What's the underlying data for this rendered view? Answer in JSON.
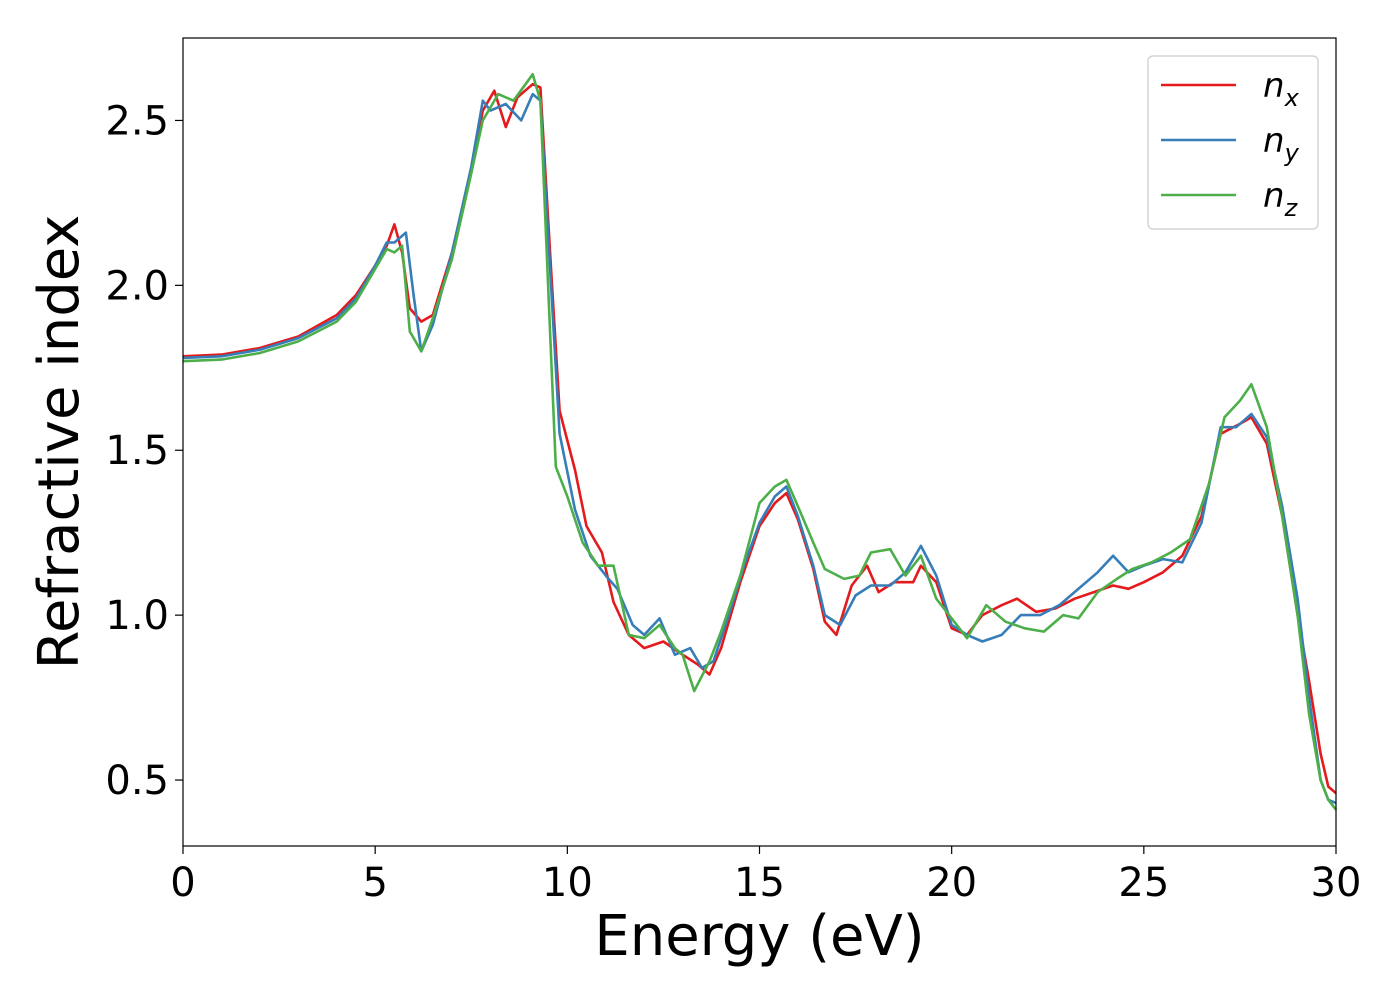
{
  "chart_data": {
    "type": "line",
    "xlabel": "Energy (eV)",
    "ylabel": "Refractive index",
    "xlim": [
      0,
      30
    ],
    "ylim": [
      0.3,
      2.75
    ],
    "x_ticks": [
      0,
      5,
      10,
      15,
      20,
      25,
      30
    ],
    "x_tick_labels": [
      "0",
      "5",
      "10",
      "15",
      "20",
      "25",
      "30"
    ],
    "y_ticks": [
      0.5,
      1.0,
      1.5,
      2.0,
      2.5
    ],
    "y_tick_labels": [
      "0.5",
      "1.0",
      "1.5",
      "2.0",
      "2.5"
    ],
    "grid": false,
    "legend_position": "top-right",
    "series": [
      {
        "name": "n",
        "subscript": "x",
        "color": "#e41a1c",
        "points": [
          [
            0,
            1.785
          ],
          [
            1,
            1.79
          ],
          [
            2,
            1.81
          ],
          [
            3,
            1.845
          ],
          [
            4,
            1.91
          ],
          [
            4.5,
            1.97
          ],
          [
            5,
            2.06
          ],
          [
            5.3,
            2.12
          ],
          [
            5.5,
            2.185
          ],
          [
            5.7,
            2.1
          ],
          [
            5.9,
            1.93
          ],
          [
            6.2,
            1.89
          ],
          [
            6.5,
            1.91
          ],
          [
            7,
            2.1
          ],
          [
            7.5,
            2.35
          ],
          [
            7.8,
            2.53
          ],
          [
            8.1,
            2.59
          ],
          [
            8.4,
            2.48
          ],
          [
            8.7,
            2.57
          ],
          [
            9.1,
            2.61
          ],
          [
            9.3,
            2.6
          ],
          [
            9.6,
            2.0
          ],
          [
            9.8,
            1.62
          ],
          [
            10.2,
            1.44
          ],
          [
            10.5,
            1.27
          ],
          [
            10.9,
            1.19
          ],
          [
            11.2,
            1.04
          ],
          [
            11.6,
            0.94
          ],
          [
            12.0,
            0.9
          ],
          [
            12.5,
            0.92
          ],
          [
            13.0,
            0.88
          ],
          [
            13.4,
            0.85
          ],
          [
            13.7,
            0.82
          ],
          [
            14.0,
            0.9
          ],
          [
            14.5,
            1.1
          ],
          [
            15.0,
            1.27
          ],
          [
            15.4,
            1.34
          ],
          [
            15.7,
            1.37
          ],
          [
            16.0,
            1.29
          ],
          [
            16.4,
            1.14
          ],
          [
            16.7,
            0.98
          ],
          [
            17.0,
            0.94
          ],
          [
            17.4,
            1.09
          ],
          [
            17.8,
            1.15
          ],
          [
            18.1,
            1.07
          ],
          [
            18.5,
            1.1
          ],
          [
            19.0,
            1.1
          ],
          [
            19.2,
            1.15
          ],
          [
            19.6,
            1.1
          ],
          [
            20.0,
            0.96
          ],
          [
            20.4,
            0.94
          ],
          [
            20.8,
            1.0
          ],
          [
            21.3,
            1.03
          ],
          [
            21.7,
            1.05
          ],
          [
            22.2,
            1.01
          ],
          [
            22.7,
            1.02
          ],
          [
            23.2,
            1.05
          ],
          [
            23.7,
            1.07
          ],
          [
            24.2,
            1.09
          ],
          [
            24.6,
            1.08
          ],
          [
            25.0,
            1.1
          ],
          [
            25.5,
            1.13
          ],
          [
            26.0,
            1.18
          ],
          [
            26.5,
            1.3
          ],
          [
            27.0,
            1.55
          ],
          [
            27.5,
            1.58
          ],
          [
            27.8,
            1.6
          ],
          [
            28.2,
            1.52
          ],
          [
            28.6,
            1.3
          ],
          [
            29.0,
            1.0
          ],
          [
            29.3,
            0.8
          ],
          [
            29.6,
            0.58
          ],
          [
            29.8,
            0.48
          ],
          [
            30.0,
            0.46
          ]
        ]
      },
      {
        "name": "n",
        "subscript": "y",
        "color": "#377eb8",
        "points": [
          [
            0,
            1.78
          ],
          [
            1,
            1.785
          ],
          [
            2,
            1.805
          ],
          [
            3,
            1.84
          ],
          [
            4,
            1.9
          ],
          [
            4.5,
            1.96
          ],
          [
            5,
            2.06
          ],
          [
            5.3,
            2.13
          ],
          [
            5.5,
            2.13
          ],
          [
            5.8,
            2.16
          ],
          [
            6.0,
            1.97
          ],
          [
            6.2,
            1.8
          ],
          [
            6.5,
            1.88
          ],
          [
            7,
            2.1
          ],
          [
            7.5,
            2.36
          ],
          [
            7.8,
            2.56
          ],
          [
            8.0,
            2.53
          ],
          [
            8.4,
            2.55
          ],
          [
            8.8,
            2.5
          ],
          [
            9.1,
            2.58
          ],
          [
            9.3,
            2.56
          ],
          [
            9.6,
            1.95
          ],
          [
            9.8,
            1.55
          ],
          [
            10.2,
            1.32
          ],
          [
            10.6,
            1.18
          ],
          [
            11.0,
            1.12
          ],
          [
            11.3,
            1.08
          ],
          [
            11.7,
            0.97
          ],
          [
            12.0,
            0.94
          ],
          [
            12.4,
            0.99
          ],
          [
            12.8,
            0.88
          ],
          [
            13.2,
            0.9
          ],
          [
            13.5,
            0.84
          ],
          [
            13.8,
            0.86
          ],
          [
            14.2,
            1.0
          ],
          [
            14.6,
            1.15
          ],
          [
            15.0,
            1.28
          ],
          [
            15.4,
            1.36
          ],
          [
            15.7,
            1.39
          ],
          [
            16.0,
            1.3
          ],
          [
            16.4,
            1.15
          ],
          [
            16.7,
            1.0
          ],
          [
            17.1,
            0.97
          ],
          [
            17.5,
            1.06
          ],
          [
            17.9,
            1.09
          ],
          [
            18.4,
            1.09
          ],
          [
            18.8,
            1.13
          ],
          [
            19.2,
            1.21
          ],
          [
            19.6,
            1.12
          ],
          [
            20.0,
            0.97
          ],
          [
            20.4,
            0.94
          ],
          [
            20.8,
            0.92
          ],
          [
            21.3,
            0.94
          ],
          [
            21.8,
            1.0
          ],
          [
            22.3,
            1.0
          ],
          [
            22.8,
            1.03
          ],
          [
            23.3,
            1.08
          ],
          [
            23.8,
            1.13
          ],
          [
            24.2,
            1.18
          ],
          [
            24.6,
            1.13
          ],
          [
            25.0,
            1.15
          ],
          [
            25.5,
            1.17
          ],
          [
            26.0,
            1.16
          ],
          [
            26.5,
            1.28
          ],
          [
            27.0,
            1.57
          ],
          [
            27.4,
            1.57
          ],
          [
            27.8,
            1.61
          ],
          [
            28.2,
            1.54
          ],
          [
            28.6,
            1.33
          ],
          [
            29.0,
            1.05
          ],
          [
            29.3,
            0.75
          ],
          [
            29.6,
            0.5
          ],
          [
            29.8,
            0.44
          ],
          [
            30.0,
            0.43
          ]
        ]
      },
      {
        "name": "n",
        "subscript": "z",
        "color": "#4daf4a",
        "points": [
          [
            0,
            1.77
          ],
          [
            1,
            1.775
          ],
          [
            2,
            1.795
          ],
          [
            3,
            1.83
          ],
          [
            4,
            1.89
          ],
          [
            4.5,
            1.95
          ],
          [
            5,
            2.05
          ],
          [
            5.3,
            2.11
          ],
          [
            5.5,
            2.1
          ],
          [
            5.7,
            2.12
          ],
          [
            5.9,
            1.86
          ],
          [
            6.2,
            1.8
          ],
          [
            6.5,
            1.9
          ],
          [
            7,
            2.08
          ],
          [
            7.5,
            2.34
          ],
          [
            7.8,
            2.5
          ],
          [
            8.2,
            2.58
          ],
          [
            8.6,
            2.56
          ],
          [
            9.1,
            2.64
          ],
          [
            9.3,
            2.56
          ],
          [
            9.5,
            2.0
          ],
          [
            9.7,
            1.45
          ],
          [
            10.0,
            1.36
          ],
          [
            10.4,
            1.22
          ],
          [
            10.8,
            1.15
          ],
          [
            11.2,
            1.15
          ],
          [
            11.6,
            0.94
          ],
          [
            12.0,
            0.93
          ],
          [
            12.4,
            0.97
          ],
          [
            12.8,
            0.9
          ],
          [
            13.0,
            0.88
          ],
          [
            13.3,
            0.77
          ],
          [
            13.7,
            0.86
          ],
          [
            14.0,
            0.95
          ],
          [
            14.5,
            1.12
          ],
          [
            15.0,
            1.34
          ],
          [
            15.4,
            1.39
          ],
          [
            15.7,
            1.41
          ],
          [
            16.0,
            1.33
          ],
          [
            16.4,
            1.22
          ],
          [
            16.7,
            1.14
          ],
          [
            17.2,
            1.11
          ],
          [
            17.6,
            1.12
          ],
          [
            17.9,
            1.19
          ],
          [
            18.4,
            1.2
          ],
          [
            18.8,
            1.12
          ],
          [
            19.2,
            1.18
          ],
          [
            19.6,
            1.05
          ],
          [
            20.0,
            0.99
          ],
          [
            20.4,
            0.93
          ],
          [
            20.9,
            1.03
          ],
          [
            21.4,
            0.98
          ],
          [
            21.9,
            0.96
          ],
          [
            22.4,
            0.95
          ],
          [
            22.9,
            1.0
          ],
          [
            23.3,
            0.99
          ],
          [
            23.8,
            1.07
          ],
          [
            24.3,
            1.11
          ],
          [
            24.7,
            1.14
          ],
          [
            25.2,
            1.16
          ],
          [
            25.7,
            1.19
          ],
          [
            26.2,
            1.23
          ],
          [
            26.7,
            1.4
          ],
          [
            27.1,
            1.6
          ],
          [
            27.5,
            1.65
          ],
          [
            27.8,
            1.7
          ],
          [
            28.2,
            1.57
          ],
          [
            28.6,
            1.3
          ],
          [
            29.0,
            1.0
          ],
          [
            29.3,
            0.7
          ],
          [
            29.6,
            0.5
          ],
          [
            29.8,
            0.44
          ],
          [
            30.0,
            0.41
          ]
        ]
      }
    ]
  }
}
